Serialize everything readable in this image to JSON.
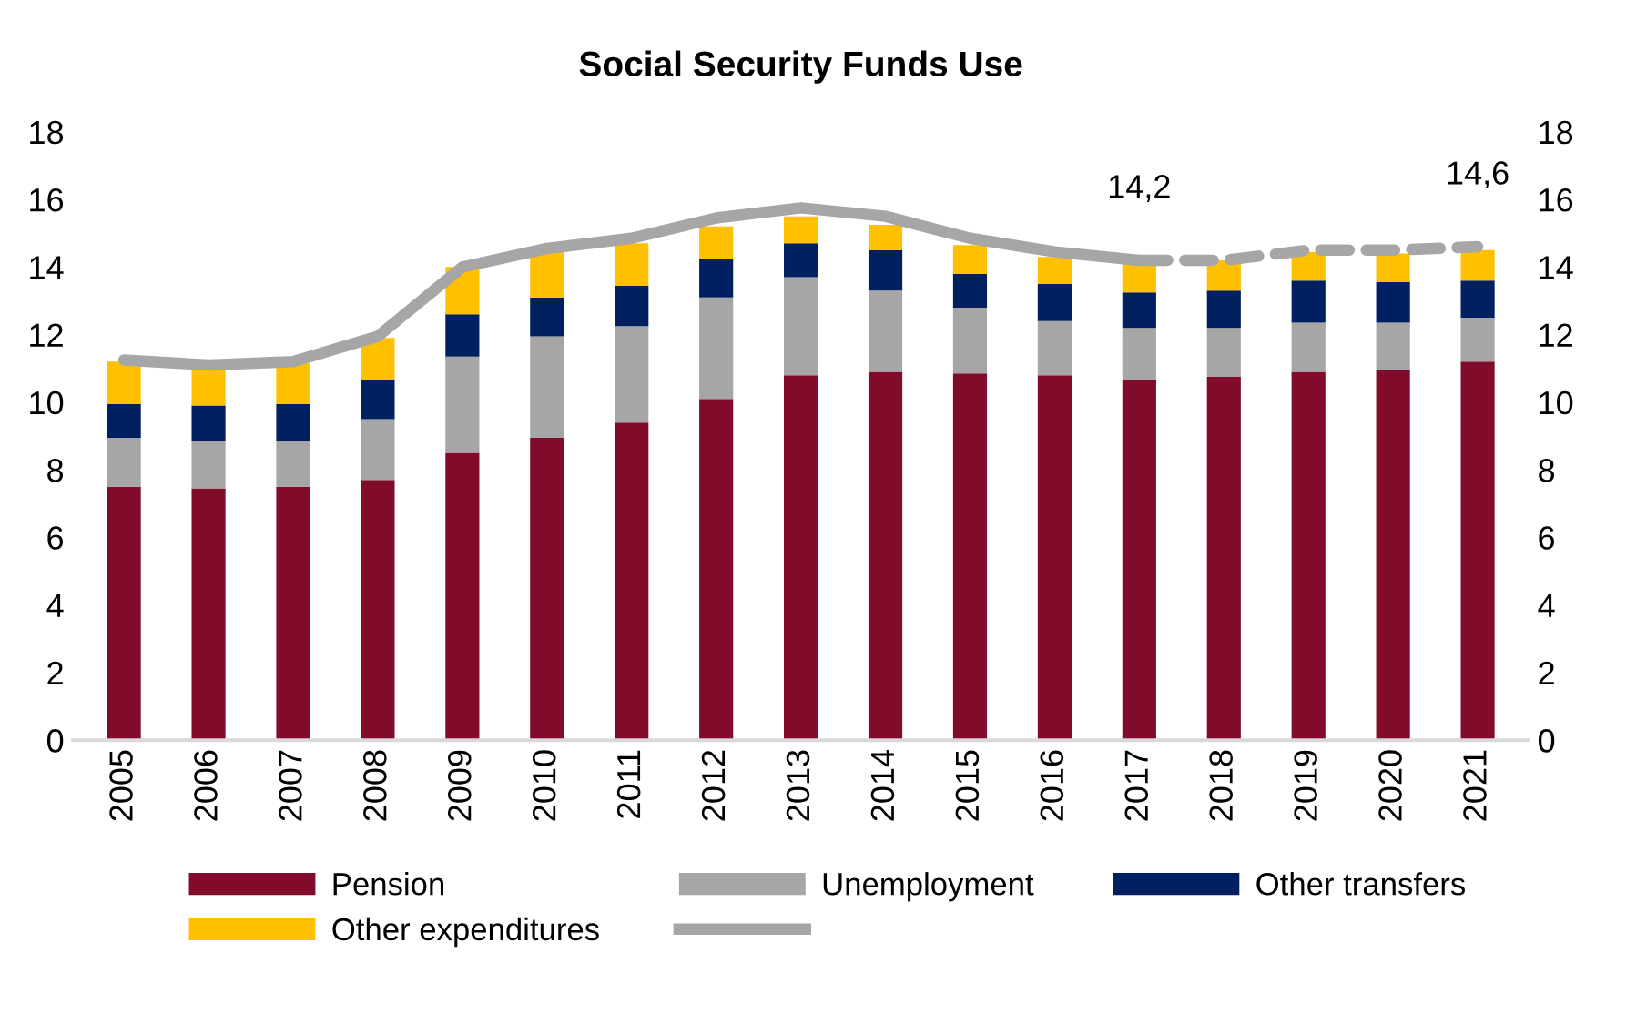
{
  "chart_data": {
    "type": "bar",
    "stacked": true,
    "title": "Social Security Funds Use",
    "categories": [
      "2005",
      "2006",
      "2007",
      "2008",
      "2009",
      "2010",
      "2011",
      "2012",
      "2013",
      "2014",
      "2015",
      "2016",
      "2017",
      "2018",
      "2019",
      "2020",
      "2021"
    ],
    "series": [
      {
        "name": "Pension",
        "color": "#800b2b",
        "values": [
          7.5,
          7.45,
          7.5,
          7.7,
          8.5,
          8.95,
          9.4,
          10.1,
          10.8,
          10.9,
          10.85,
          10.8,
          10.65,
          10.75,
          10.9,
          10.95,
          11.2
        ]
      },
      {
        "name": "Unemployment",
        "color": "#a6a6a6",
        "values": [
          1.45,
          1.4,
          1.35,
          1.8,
          2.85,
          3.0,
          2.85,
          3.0,
          2.9,
          2.4,
          1.95,
          1.6,
          1.55,
          1.45,
          1.45,
          1.4,
          1.3
        ]
      },
      {
        "name": "Other transfers",
        "color": "#002060",
        "values": [
          1.0,
          1.05,
          1.1,
          1.15,
          1.25,
          1.15,
          1.2,
          1.15,
          1.0,
          1.2,
          1.0,
          1.1,
          1.05,
          1.1,
          1.25,
          1.2,
          1.1
        ]
      },
      {
        "name": "Other expenditures",
        "color": "#ffc000",
        "values": [
          1.25,
          1.15,
          1.2,
          1.25,
          1.4,
          1.35,
          1.25,
          0.95,
          0.8,
          0.75,
          0.85,
          0.8,
          0.9,
          0.9,
          0.85,
          0.85,
          0.9
        ]
      },
      {
        "type": "line",
        "color": "#a6a6a6",
        "line_style": "solid",
        "values": [
          11.25,
          11.1,
          11.2,
          11.95,
          14.0,
          14.55,
          14.85,
          15.45,
          15.75,
          15.5,
          14.85,
          14.45,
          14.2,
          null,
          null,
          null,
          null
        ]
      },
      {
        "type": "line",
        "color": "#a6a6a6",
        "line_style": "dashed",
        "values": [
          null,
          null,
          null,
          null,
          null,
          null,
          null,
          null,
          null,
          null,
          null,
          null,
          14.2,
          14.2,
          14.5,
          14.5,
          14.6
        ]
      }
    ],
    "annotations": [
      {
        "text": "14,2",
        "x": "2017",
        "y": 14.2
      },
      {
        "text": "14,6",
        "x": "2021",
        "y": 14.6
      }
    ],
    "ylim": [
      0,
      18
    ],
    "yticks": [
      0,
      2,
      4,
      6,
      8,
      10,
      12,
      14,
      16,
      18
    ],
    "y2lim": [
      0,
      18
    ],
    "y2ticks": [
      0,
      2,
      4,
      6,
      8,
      10,
      12,
      14,
      16,
      18
    ],
    "grid": false,
    "legend": "bottom"
  }
}
